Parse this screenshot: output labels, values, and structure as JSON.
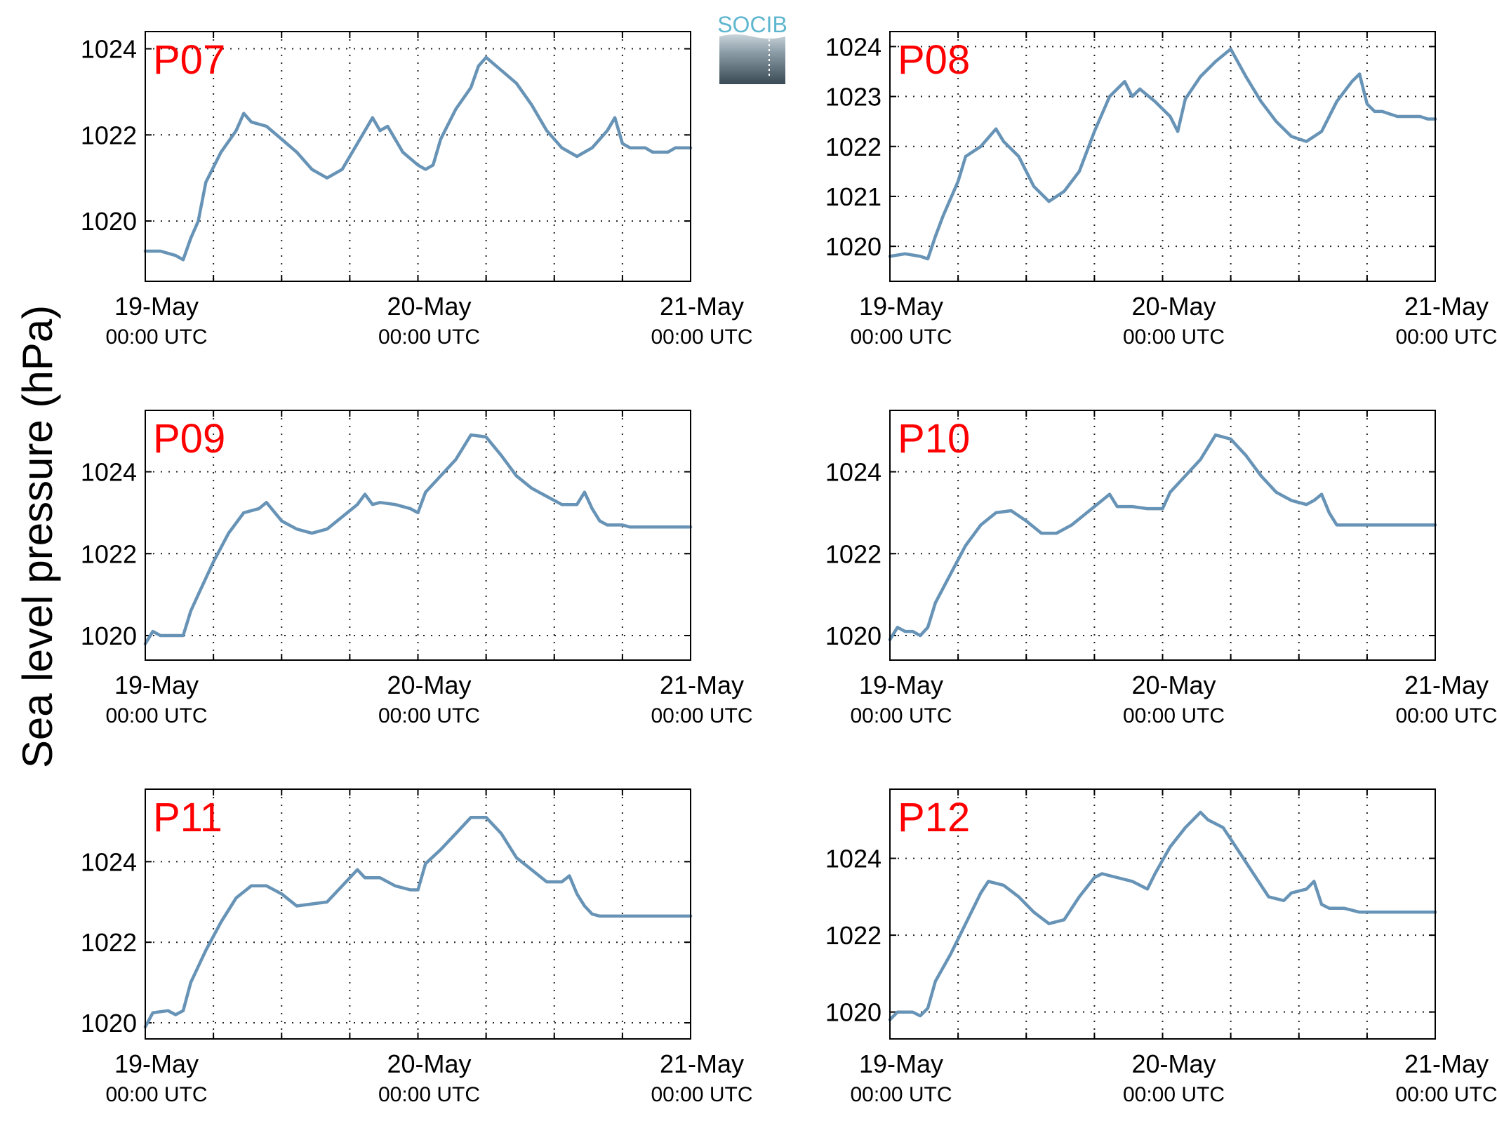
{
  "figure": {
    "ylabel": "Sea level pressure (hPa)",
    "logo_text": "SOCIB"
  },
  "colors": {
    "line": "#6793b6",
    "panel_label": "#ff0000",
    "logo_top": "#5fb6cf",
    "logo_bottom": "#3a4a55"
  },
  "chart_data": [
    {
      "type": "line",
      "label": "P07",
      "x": [
        "2014-05-19T00:00Z",
        "2014-05-21T00:00Z"
      ],
      "xticks": [
        {
          "date": "19-May",
          "time": "00:00 UTC"
        },
        {
          "date": "20-May",
          "time": "00:00 UTC"
        },
        {
          "date": "21-May",
          "time": "00:00 UTC"
        }
      ],
      "yticks": [
        "1020",
        "1022",
        "1024"
      ],
      "ylim": [
        1018.6,
        1024.4
      ],
      "grid": true,
      "y": [
        [
          0,
          1019.3
        ],
        [
          2,
          1019.3
        ],
        [
          4,
          1019.2
        ],
        [
          5,
          1019.1
        ],
        [
          6,
          1019.6
        ],
        [
          7,
          1020.0
        ],
        [
          8,
          1020.9
        ],
        [
          10,
          1021.6
        ],
        [
          12,
          1022.1
        ],
        [
          13,
          1022.5
        ],
        [
          14,
          1022.3
        ],
        [
          16,
          1022.2
        ],
        [
          18,
          1021.9
        ],
        [
          20,
          1021.6
        ],
        [
          22,
          1021.2
        ],
        [
          24,
          1021.0
        ],
        [
          26,
          1021.2
        ],
        [
          28,
          1021.8
        ],
        [
          30,
          1022.4
        ],
        [
          31,
          1022.1
        ],
        [
          32,
          1022.2
        ],
        [
          34,
          1021.6
        ],
        [
          36,
          1021.3
        ],
        [
          37,
          1021.2
        ],
        [
          38,
          1021.3
        ],
        [
          39,
          1021.9
        ],
        [
          41,
          1022.6
        ],
        [
          43,
          1023.1
        ],
        [
          44,
          1023.6
        ],
        [
          45,
          1023.8
        ],
        [
          47,
          1023.5
        ],
        [
          49,
          1023.2
        ],
        [
          51,
          1022.7
        ],
        [
          53,
          1022.1
        ],
        [
          55,
          1021.7
        ],
        [
          57,
          1021.5
        ],
        [
          59,
          1021.7
        ],
        [
          61,
          1022.1
        ],
        [
          62,
          1022.4
        ],
        [
          63,
          1021.8
        ],
        [
          64,
          1021.7
        ],
        [
          65,
          1021.7
        ],
        [
          66,
          1021.7
        ],
        [
          67,
          1021.6
        ],
        [
          68,
          1021.6
        ],
        [
          69,
          1021.6
        ],
        [
          70,
          1021.7
        ],
        [
          71,
          1021.7
        ],
        [
          72,
          1021.7
        ]
      ]
    },
    {
      "type": "line",
      "label": "P08",
      "x": [
        "2014-05-19T00:00Z",
        "2014-05-21T00:00Z"
      ],
      "xticks": [
        {
          "date": "19-May",
          "time": "00:00 UTC"
        },
        {
          "date": "20-May",
          "time": "00:00 UTC"
        },
        {
          "date": "21-May",
          "time": "00:00 UTC"
        }
      ],
      "yticks": [
        "1020",
        "1021",
        "1022",
        "1023",
        "1024"
      ],
      "ylim": [
        1019.3,
        1024.3
      ],
      "grid": true,
      "y": [
        [
          0,
          1019.8
        ],
        [
          2,
          1019.85
        ],
        [
          4,
          1019.8
        ],
        [
          5,
          1019.75
        ],
        [
          6,
          1020.2
        ],
        [
          7,
          1020.6
        ],
        [
          9,
          1021.3
        ],
        [
          10,
          1021.8
        ],
        [
          12,
          1022.0
        ],
        [
          14,
          1022.35
        ],
        [
          15,
          1022.1
        ],
        [
          17,
          1021.8
        ],
        [
          19,
          1021.2
        ],
        [
          21,
          1020.9
        ],
        [
          23,
          1021.1
        ],
        [
          25,
          1021.5
        ],
        [
          27,
          1022.3
        ],
        [
          29,
          1023.0
        ],
        [
          31,
          1023.3
        ],
        [
          32,
          1023.0
        ],
        [
          33,
          1023.15
        ],
        [
          35,
          1022.9
        ],
        [
          37,
          1022.6
        ],
        [
          38,
          1022.3
        ],
        [
          39,
          1022.95
        ],
        [
          41,
          1023.4
        ],
        [
          43,
          1023.7
        ],
        [
          45,
          1023.95
        ],
        [
          47,
          1023.4
        ],
        [
          49,
          1022.9
        ],
        [
          51,
          1022.5
        ],
        [
          53,
          1022.2
        ],
        [
          55,
          1022.1
        ],
        [
          57,
          1022.3
        ],
        [
          59,
          1022.9
        ],
        [
          61,
          1023.3
        ],
        [
          62,
          1023.45
        ],
        [
          63,
          1022.85
        ],
        [
          64,
          1022.7
        ],
        [
          65,
          1022.7
        ],
        [
          66,
          1022.65
        ],
        [
          67,
          1022.6
        ],
        [
          68,
          1022.6
        ],
        [
          69,
          1022.6
        ],
        [
          70,
          1022.6
        ],
        [
          71,
          1022.55
        ],
        [
          72,
          1022.55
        ]
      ]
    },
    {
      "type": "line",
      "label": "P09",
      "x": [
        "2014-05-19T00:00Z",
        "2014-05-21T00:00Z"
      ],
      "xticks": [
        {
          "date": "19-May",
          "time": "00:00 UTC"
        },
        {
          "date": "20-May",
          "time": "00:00 UTC"
        },
        {
          "date": "21-May",
          "time": "00:00 UTC"
        }
      ],
      "yticks": [
        "1020",
        "1022",
        "1024"
      ],
      "ylim": [
        1019.4,
        1025.5
      ],
      "grid": true,
      "y": [
        [
          0,
          1019.8
        ],
        [
          1,
          1020.1
        ],
        [
          2,
          1020.0
        ],
        [
          4,
          1020.0
        ],
        [
          5,
          1020.0
        ],
        [
          6,
          1020.6
        ],
        [
          7,
          1021.0
        ],
        [
          9,
          1021.8
        ],
        [
          11,
          1022.5
        ],
        [
          13,
          1023.0
        ],
        [
          15,
          1023.1
        ],
        [
          16,
          1023.25
        ],
        [
          18,
          1022.8
        ],
        [
          20,
          1022.6
        ],
        [
          22,
          1022.5
        ],
        [
          24,
          1022.6
        ],
        [
          26,
          1022.9
        ],
        [
          28,
          1023.2
        ],
        [
          29,
          1023.45
        ],
        [
          30,
          1023.2
        ],
        [
          31,
          1023.25
        ],
        [
          33,
          1023.2
        ],
        [
          35,
          1023.1
        ],
        [
          36,
          1023.0
        ],
        [
          37,
          1023.5
        ],
        [
          39,
          1023.9
        ],
        [
          41,
          1024.3
        ],
        [
          43,
          1024.9
        ],
        [
          45,
          1024.85
        ],
        [
          47,
          1024.4
        ],
        [
          49,
          1023.9
        ],
        [
          51,
          1023.6
        ],
        [
          53,
          1023.4
        ],
        [
          55,
          1023.2
        ],
        [
          57,
          1023.2
        ],
        [
          58,
          1023.5
        ],
        [
          59,
          1023.1
        ],
        [
          60,
          1022.8
        ],
        [
          61,
          1022.7
        ],
        [
          62,
          1022.7
        ],
        [
          63,
          1022.7
        ],
        [
          64,
          1022.65
        ],
        [
          66,
          1022.65
        ],
        [
          68,
          1022.65
        ],
        [
          70,
          1022.65
        ],
        [
          72,
          1022.65
        ]
      ]
    },
    {
      "type": "line",
      "label": "P10",
      "x": [
        "2014-05-19T00:00Z",
        "2014-05-21T00:00Z"
      ],
      "xticks": [
        {
          "date": "19-May",
          "time": "00:00 UTC"
        },
        {
          "date": "20-May",
          "time": "00:00 UTC"
        },
        {
          "date": "21-May",
          "time": "00:00 UTC"
        }
      ],
      "yticks": [
        "1020",
        "1022",
        "1024"
      ],
      "ylim": [
        1019.4,
        1025.5
      ],
      "grid": true,
      "y": [
        [
          0,
          1019.9
        ],
        [
          1,
          1020.2
        ],
        [
          2,
          1020.1
        ],
        [
          3,
          1020.1
        ],
        [
          4,
          1020.0
        ],
        [
          5,
          1020.2
        ],
        [
          6,
          1020.8
        ],
        [
          8,
          1021.5
        ],
        [
          10,
          1022.2
        ],
        [
          12,
          1022.7
        ],
        [
          14,
          1023.0
        ],
        [
          16,
          1023.05
        ],
        [
          18,
          1022.8
        ],
        [
          20,
          1022.5
        ],
        [
          22,
          1022.5
        ],
        [
          24,
          1022.7
        ],
        [
          26,
          1023.0
        ],
        [
          28,
          1023.3
        ],
        [
          29,
          1023.45
        ],
        [
          30,
          1023.15
        ],
        [
          32,
          1023.15
        ],
        [
          34,
          1023.1
        ],
        [
          36,
          1023.1
        ],
        [
          37,
          1023.5
        ],
        [
          39,
          1023.9
        ],
        [
          41,
          1024.3
        ],
        [
          43,
          1024.9
        ],
        [
          45,
          1024.8
        ],
        [
          47,
          1024.4
        ],
        [
          49,
          1023.9
        ],
        [
          51,
          1023.5
        ],
        [
          53,
          1023.3
        ],
        [
          55,
          1023.2
        ],
        [
          56,
          1023.3
        ],
        [
          57,
          1023.45
        ],
        [
          58,
          1023.0
        ],
        [
          59,
          1022.7
        ],
        [
          60,
          1022.7
        ],
        [
          61,
          1022.7
        ],
        [
          62,
          1022.7
        ],
        [
          64,
          1022.7
        ],
        [
          66,
          1022.7
        ],
        [
          68,
          1022.7
        ],
        [
          70,
          1022.7
        ],
        [
          72,
          1022.7
        ]
      ]
    },
    {
      "type": "line",
      "label": "P11",
      "x": [
        "2014-05-19T00:00Z",
        "2014-05-21T00:00Z"
      ],
      "xticks": [
        {
          "date": "19-May",
          "time": "00:00 UTC"
        },
        {
          "date": "20-May",
          "time": "00:00 UTC"
        },
        {
          "date": "21-May",
          "time": "00:00 UTC"
        }
      ],
      "yticks": [
        "1020",
        "1022",
        "1024"
      ],
      "ylim": [
        1019.6,
        1025.8
      ],
      "grid": true,
      "y": [
        [
          0,
          1019.9
        ],
        [
          1,
          1020.25
        ],
        [
          3,
          1020.3
        ],
        [
          4,
          1020.2
        ],
        [
          5,
          1020.3
        ],
        [
          6,
          1021.0
        ],
        [
          8,
          1021.8
        ],
        [
          10,
          1022.5
        ],
        [
          12,
          1023.1
        ],
        [
          14,
          1023.4
        ],
        [
          16,
          1023.4
        ],
        [
          18,
          1023.2
        ],
        [
          20,
          1022.9
        ],
        [
          22,
          1022.95
        ],
        [
          24,
          1023.0
        ],
        [
          26,
          1023.4
        ],
        [
          28,
          1023.8
        ],
        [
          29,
          1023.6
        ],
        [
          31,
          1023.6
        ],
        [
          33,
          1023.4
        ],
        [
          35,
          1023.3
        ],
        [
          36,
          1023.3
        ],
        [
          37,
          1023.95
        ],
        [
          39,
          1024.3
        ],
        [
          41,
          1024.7
        ],
        [
          43,
          1025.1
        ],
        [
          45,
          1025.1
        ],
        [
          47,
          1024.7
        ],
        [
          49,
          1024.1
        ],
        [
          51,
          1023.8
        ],
        [
          53,
          1023.5
        ],
        [
          55,
          1023.5
        ],
        [
          56,
          1023.65
        ],
        [
          57,
          1023.2
        ],
        [
          58,
          1022.9
        ],
        [
          59,
          1022.7
        ],
        [
          60,
          1022.65
        ],
        [
          62,
          1022.65
        ],
        [
          64,
          1022.65
        ],
        [
          66,
          1022.65
        ],
        [
          68,
          1022.65
        ],
        [
          70,
          1022.65
        ],
        [
          72,
          1022.65
        ]
      ]
    },
    {
      "type": "line",
      "label": "P12",
      "x": [
        "2014-05-19T00:00Z",
        "2014-05-21T00:00Z"
      ],
      "xticks": [
        {
          "date": "19-May",
          "time": "00:00 UTC"
        },
        {
          "date": "20-May",
          "time": "00:00 UTC"
        },
        {
          "date": "21-May",
          "time": "00:00 UTC"
        }
      ],
      "yticks": [
        "1020",
        "1022",
        "1024"
      ],
      "ylim": [
        1019.3,
        1025.8
      ],
      "grid": true,
      "y": [
        [
          0,
          1019.8
        ],
        [
          1,
          1020.0
        ],
        [
          3,
          1020.0
        ],
        [
          4,
          1019.9
        ],
        [
          5,
          1020.1
        ],
        [
          6,
          1020.8
        ],
        [
          8,
          1021.5
        ],
        [
          10,
          1022.3
        ],
        [
          12,
          1023.1
        ],
        [
          13,
          1023.4
        ],
        [
          15,
          1023.3
        ],
        [
          17,
          1023.0
        ],
        [
          19,
          1022.6
        ],
        [
          21,
          1022.3
        ],
        [
          23,
          1022.4
        ],
        [
          25,
          1023.0
        ],
        [
          27,
          1023.5
        ],
        [
          28,
          1023.6
        ],
        [
          30,
          1023.5
        ],
        [
          32,
          1023.4
        ],
        [
          34,
          1023.2
        ],
        [
          35,
          1023.6
        ],
        [
          37,
          1024.3
        ],
        [
          39,
          1024.8
        ],
        [
          41,
          1025.2
        ],
        [
          42,
          1025.0
        ],
        [
          44,
          1024.8
        ],
        [
          46,
          1024.2
        ],
        [
          48,
          1023.6
        ],
        [
          50,
          1023.0
        ],
        [
          52,
          1022.9
        ],
        [
          53,
          1023.1
        ],
        [
          55,
          1023.2
        ],
        [
          56,
          1023.4
        ],
        [
          57,
          1022.8
        ],
        [
          58,
          1022.7
        ],
        [
          60,
          1022.7
        ],
        [
          62,
          1022.6
        ],
        [
          64,
          1022.6
        ],
        [
          66,
          1022.6
        ],
        [
          68,
          1022.6
        ],
        [
          70,
          1022.6
        ],
        [
          72,
          1022.6
        ]
      ]
    }
  ]
}
